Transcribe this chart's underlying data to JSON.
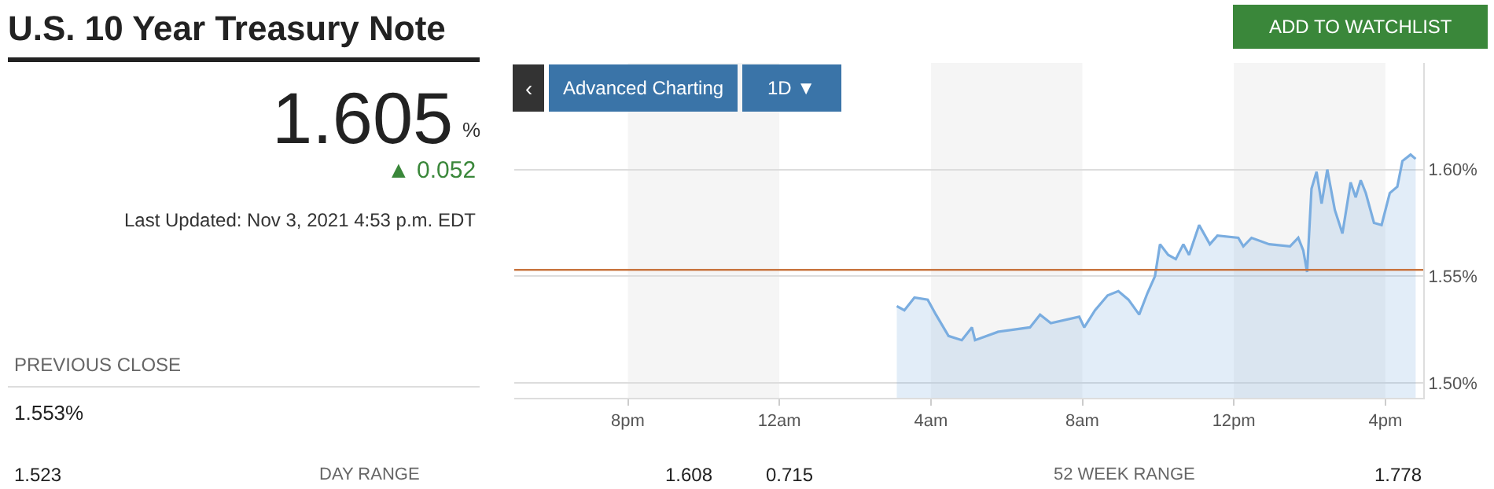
{
  "chart_data": {
    "type": "area",
    "title": "U.S. 10 Year Treasury Note",
    "annotations": [
      "1.605",
      "%",
      "▲ 0.052",
      "Last Updated: Nov 3, 2021 4:53 p.m. EDT",
      "PREVIOUS CLOSE",
      "1.553%",
      "1.523",
      "DAY RANGE",
      "1.608",
      "0.715",
      "52 WEEK RANGE",
      "1.778",
      "ADD TO WATCHLIST",
      "‹",
      "Advanced Charting",
      "1D ▼"
    ],
    "x": [
      "2021-11-03T03:06",
      "2021-11-03T03:18",
      "2021-11-03T03:34",
      "2021-11-03T03:55",
      "2021-11-03T04:08",
      "2021-11-03T04:28",
      "2021-11-03T04:49",
      "2021-11-03T05:05",
      "2021-11-03T05:10",
      "2021-11-03T05:47",
      "2021-11-03T06:37",
      "2021-11-03T06:53",
      "2021-11-03T07:10",
      "2021-11-03T07:55",
      "2021-11-03T08:03",
      "2021-11-03T08:20",
      "2021-11-03T08:40",
      "2021-11-03T08:57",
      "2021-11-03T09:13",
      "2021-11-03T09:30",
      "2021-11-03T09:43",
      "2021-11-03T09:55",
      "2021-11-03T10:03",
      "2021-11-03T10:16",
      "2021-11-03T10:28",
      "2021-11-03T10:40",
      "2021-11-03T10:49",
      "2021-11-03T11:05",
      "2021-11-03T11:22",
      "2021-11-03T11:34",
      "2021-11-03T12:07",
      "2021-11-03T12:15",
      "2021-11-03T12:28",
      "2021-11-03T12:56",
      "2021-11-03T13:29",
      "2021-11-03T13:42",
      "2021-11-03T13:50",
      "2021-11-03T13:56",
      "2021-11-03T14:03",
      "2021-11-03T14:11",
      "2021-11-03T14:19",
      "2021-11-03T14:28",
      "2021-11-03T14:40",
      "2021-11-03T14:52",
      "2021-11-03T15:05",
      "2021-11-03T15:13",
      "2021-11-03T15:21",
      "2021-11-03T15:29",
      "2021-11-03T15:42",
      "2021-11-03T15:54",
      "2021-11-03T16:07",
      "2021-11-03T16:19",
      "2021-11-03T16:27",
      "2021-11-03T16:40",
      "2021-11-03T16:48"
    ],
    "series": [
      {
        "color": "#7aade0",
        "values": [
          1.536,
          1.534,
          1.54,
          1.539,
          1.532,
          1.522,
          1.52,
          1.526,
          1.52,
          1.524,
          1.526,
          1.532,
          1.528,
          1.531,
          1.526,
          1.534,
          1.541,
          1.543,
          1.539,
          1.532,
          1.542,
          1.55,
          1.565,
          1.56,
          1.558,
          1.565,
          1.56,
          1.574,
          1.565,
          1.569,
          1.568,
          1.564,
          1.568,
          1.565,
          1.564,
          1.568,
          1.562,
          1.552,
          1.591,
          1.599,
          1.584,
          1.6,
          1.581,
          1.57,
          1.594,
          1.587,
          1.595,
          1.589,
          1.575,
          1.574,
          1.589,
          1.592,
          1.604,
          1.607,
          1.605
        ]
      }
    ],
    "xlim": [
      "2021-11-02T17:00",
      "2021-11-03T17:00"
    ],
    "ylim": [
      1.493,
      1.65
    ],
    "xticks": [
      {
        "value": "2021-11-02T20:00",
        "label": "8pm"
      },
      {
        "value": "2021-11-03T00:00",
        "label": "12am"
      },
      {
        "value": "2021-11-03T04:00",
        "label": "4am"
      },
      {
        "value": "2021-11-03T08:00",
        "label": "8am"
      },
      {
        "value": "2021-11-03T12:00",
        "label": "12pm"
      },
      {
        "value": "2021-11-03T16:00",
        "label": "4pm"
      }
    ],
    "yticks": [
      {
        "value": 1.5,
        "label": "1.50%"
      },
      {
        "value": 1.55,
        "label": "1.55%"
      },
      {
        "value": 1.6,
        "label": "1.60%"
      }
    ],
    "ref_lines": [
      {
        "axis": "y",
        "value": 1.553,
        "color": "#c8743f"
      }
    ],
    "bands": [
      {
        "axis": "x",
        "from": "2021-11-02T20:00",
        "to": "2021-11-03T00:00",
        "color": "#f5f5f5"
      },
      {
        "axis": "x",
        "from": "2021-11-03T04:00",
        "to": "2021-11-03T08:00",
        "color": "#f5f5f5"
      },
      {
        "axis": "x",
        "from": "2021-11-03T12:00",
        "to": "2021-11-03T16:00",
        "color": "#f5f5f5"
      }
    ],
    "grid": "y",
    "marker": "none",
    "line_style": "solid"
  }
}
